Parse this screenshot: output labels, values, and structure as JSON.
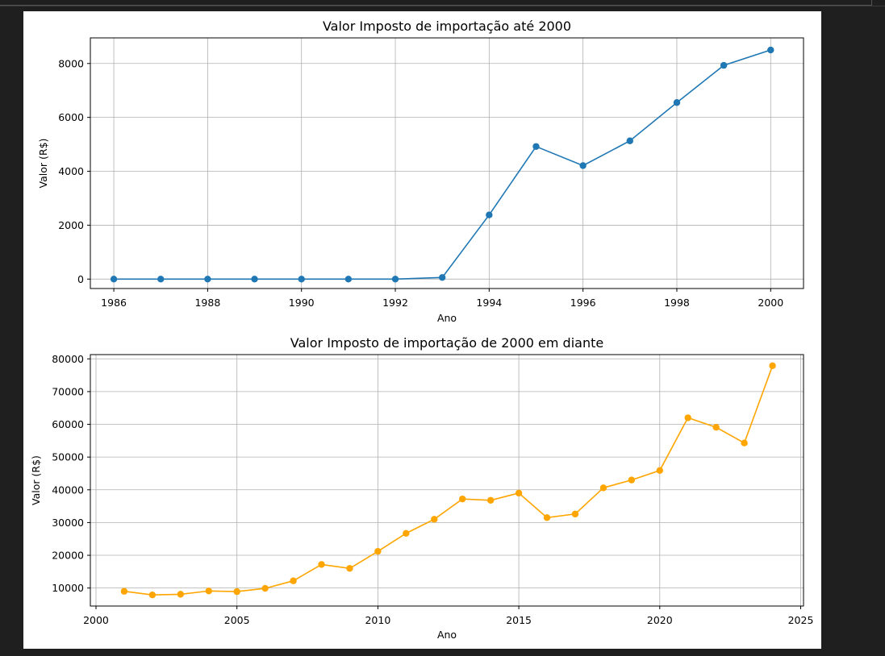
{
  "chart_data": [
    {
      "type": "line",
      "title": "Valor Imposto de importação até 2000",
      "xlabel": "Ano",
      "ylabel": "Valor (R$)",
      "xlim": [
        1985.5,
        2000.7
      ],
      "ylim": [
        -350,
        8950
      ],
      "xticks": [
        1986,
        1988,
        1990,
        1992,
        1994,
        1996,
        1998,
        2000
      ],
      "yticks": [
        0,
        2000,
        4000,
        6000,
        8000
      ],
      "grid": true,
      "color": "#1f77b4",
      "marker": "circle",
      "x": [
        1986,
        1987,
        1988,
        1989,
        1990,
        1991,
        1992,
        1993,
        1994,
        1995,
        1996,
        1997,
        1998,
        1999,
        2000
      ],
      "y": [
        0,
        0,
        0,
        0,
        0,
        0,
        0,
        60,
        2380,
        4920,
        4210,
        5130,
        6550,
        7930,
        8500
      ]
    },
    {
      "type": "line",
      "title": "Valor Imposto de importação de 2000 em diante",
      "xlabel": "Ano",
      "ylabel": "Valor (R$)",
      "xlim": [
        1999.8,
        2025.1
      ],
      "ylim": [
        4500,
        81300
      ],
      "xticks": [
        2000,
        2005,
        2010,
        2015,
        2020,
        2025
      ],
      "yticks": [
        10000,
        20000,
        30000,
        40000,
        50000,
        60000,
        70000,
        80000
      ],
      "grid": true,
      "color": "#ffa500",
      "marker": "circle",
      "x": [
        2001,
        2002,
        2003,
        2004,
        2005,
        2006,
        2007,
        2008,
        2009,
        2010,
        2011,
        2012,
        2013,
        2014,
        2015,
        2016,
        2017,
        2018,
        2019,
        2020,
        2021,
        2022,
        2023,
        2024
      ],
      "y": [
        9000,
        7900,
        8100,
        9100,
        8900,
        9900,
        12200,
        17200,
        16000,
        21200,
        26700,
        31000,
        37200,
        36800,
        39000,
        31500,
        32600,
        40600,
        43000,
        45900,
        62000,
        59100,
        54300,
        77900
      ]
    }
  ]
}
